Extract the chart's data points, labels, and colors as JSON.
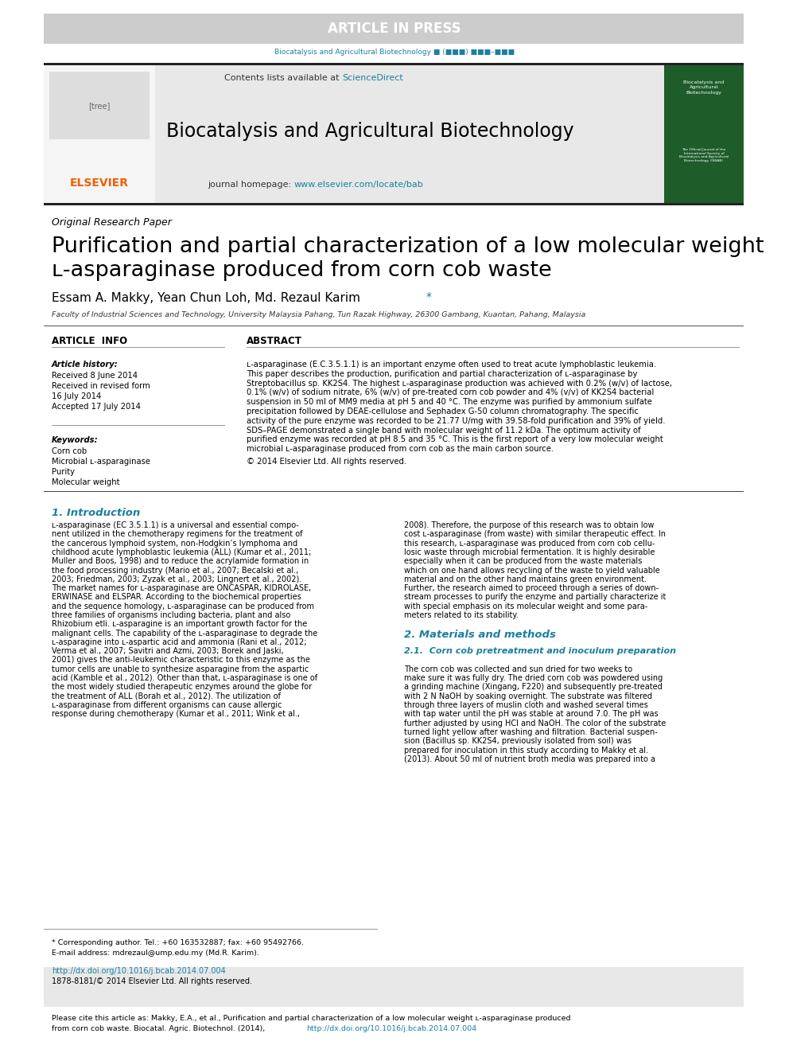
{
  "article_in_press_text": "ARTICLE IN PRESS",
  "article_in_press_bg": "#cccccc",
  "article_in_press_color": "#ffffff",
  "journal_line_teal": "Biocatalysis and Agricultural Biotechnology ■ (■■■) ■■■–■■■",
  "journal_line_color": "#1a7fa0",
  "contents_text": "Contents lists available at ",
  "science_direct": "ScienceDirect",
  "science_direct_color": "#1a7fa0",
  "journal_title": "Biocatalysis and Agricultural Biotechnology",
  "journal_title_color": "#000000",
  "journal_homepage_text": "journal homepage: ",
  "journal_url": "www.elsevier.com/locate/bab",
  "journal_url_color": "#1a7fa0",
  "elsevier_color": "#f06000",
  "header_bg": "#e8e8e8",
  "paper_type": "Original Research Paper",
  "article_title_line1": "Purification and partial characterization of a low molecular weight",
  "article_title_line2": "ʟ-asparaginase produced from corn cob waste",
  "authors": "Essam A. Makky, Yean Chun Loh, Md. Rezaul Karim",
  "asterisk_color": "#1a7fa0",
  "affiliation": "Faculty of Industrial Sciences and Technology, University Malaysia Pahang, Tun Razak Highway, 26300 Gambang, Kuantan, Pahang, Malaysia",
  "article_info_header": "ARTICLE  INFO",
  "abstract_header": "ABSTRACT",
  "article_history_label": "Article history:",
  "received1": "Received 8 June 2014",
  "revised": "Received in revised form",
  "revised_date": "16 July 2014",
  "accepted": "Accepted 17 July 2014",
  "keywords_label": "Keywords:",
  "keywords": [
    "Corn cob",
    "Microbial ʟ-asparaginase",
    "Purity",
    "Molecular weight"
  ],
  "copyright": "© 2014 Elsevier Ltd. All rights reserved.",
  "intro_header": "1. Introduction",
  "intro_header_color": "#1a7fa0",
  "materials_header": "2. Materials and methods",
  "corn_cob_header": "2.1.  Corn cob pretreatment and inoculum preparation",
  "footnote_line1": "* Corresponding author. Tel.: +60 163532887; fax: +60 95492766.",
  "footnote_line2": "E-mail address: mdrezaul@ump.edu.my (Md.R. Karim).",
  "doi_text": "http://dx.doi.org/10.1016/j.bcab.2014.07.004",
  "issn_text": "1878-8181/© 2014 Elsevier Ltd. All rights reserved.",
  "cite_box_line1": "Please cite this article as: Makky, E.A., et al., Purification and partial characterization of a low molecular weight ʟ-asparaginase produced",
  "cite_box_line2a": "from corn cob waste. Biocatal. Agric. Biotechnol. (2014), ",
  "cite_box_line2b": "http://dx.doi.org/10.1016/j.bcab.2014.07.004",
  "cite_box_bg": "#e8e8e8",
  "page_bg": "#ffffff",
  "doi_color": "#1a7fa0",
  "teal": "#1a7fa0",
  "dark_line": "#222222",
  "mid_line": "#555555",
  "light_line": "#aaaaaa"
}
